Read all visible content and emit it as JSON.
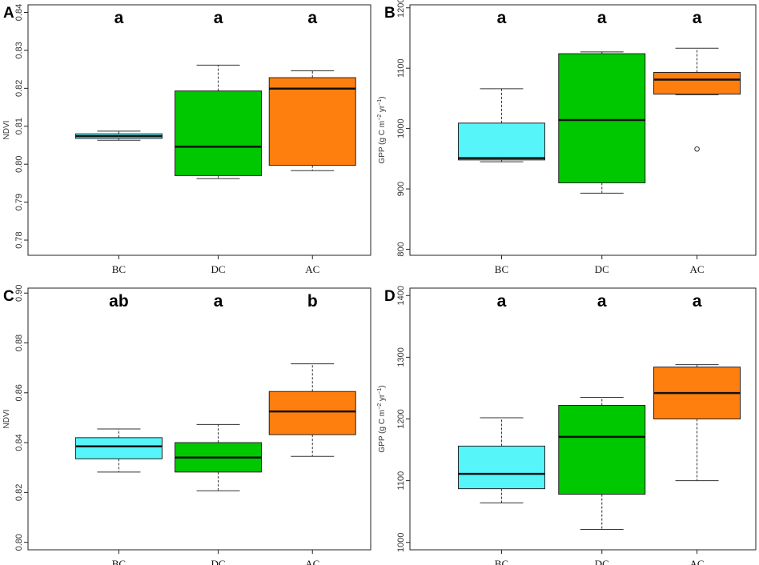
{
  "figure": {
    "groups": [
      "BC",
      "DC",
      "AC"
    ],
    "colors": {
      "BC": "#55F5FA",
      "DC": "#00C800",
      "AC": "#FF7F0E"
    }
  },
  "chart_data": [
    {
      "panel": "A",
      "type": "box",
      "categories": [
        "BC",
        "DC",
        "AC"
      ],
      "ylabel": "NDVI",
      "ylim": [
        0.776,
        0.842
      ],
      "yticks": [
        0.78,
        0.79,
        0.8,
        0.81,
        0.82,
        0.83,
        0.84
      ],
      "yticklabels": [
        "0.78",
        "0.79",
        "0.80",
        "0.81",
        "0.82",
        "0.83",
        "0.84"
      ],
      "significance": [
        "a",
        "a",
        "a"
      ],
      "boxes": [
        {
          "min": 0.8063,
          "q1": 0.8068,
          "median": 0.8074,
          "q3": 0.808,
          "max": 0.8087
        },
        {
          "min": 0.7962,
          "q1": 0.797,
          "median": 0.8046,
          "q3": 0.8193,
          "max": 0.8261
        },
        {
          "min": 0.7983,
          "q1": 0.7997,
          "median": 0.8199,
          "q3": 0.8228,
          "max": 0.8246
        }
      ],
      "outliers": [
        [],
        [],
        []
      ]
    },
    {
      "panel": "B",
      "type": "box",
      "categories": [
        "BC",
        "DC",
        "AC"
      ],
      "ylabel": "GPP (g C m",
      "ylabel_parts": [
        "GPP (g C m",
        "−2",
        " yr",
        "−1",
        ")"
      ],
      "ylim": [
        790,
        1205
      ],
      "yticks": [
        800,
        900,
        1000,
        1100,
        1200
      ],
      "yticklabels": [
        "800",
        "900",
        "1000",
        "1100",
        "1200"
      ],
      "significance": [
        "a",
        "a",
        "a"
      ],
      "boxes": [
        {
          "min": 945,
          "q1": 948,
          "median": 951,
          "q3": 1009,
          "max": 1066
        },
        {
          "min": 893,
          "q1": 910,
          "median": 1014,
          "q3": 1124,
          "max": 1127
        },
        {
          "min": 1056,
          "q1": 1057,
          "median": 1081,
          "q3": 1093,
          "max": 1133
        }
      ],
      "outliers": [
        [],
        [],
        [
          966
        ]
      ]
    },
    {
      "panel": "C",
      "type": "box",
      "categories": [
        "BC",
        "DC",
        "AC"
      ],
      "ylabel": "NDVI",
      "ylim": [
        0.797,
        0.902
      ],
      "yticks": [
        0.8,
        0.82,
        0.84,
        0.86,
        0.88,
        0.9
      ],
      "yticklabels": [
        "0.80",
        "0.82",
        "0.84",
        "0.86",
        "0.88",
        "0.90"
      ],
      "significance": [
        "ab",
        "a",
        "b"
      ],
      "boxes": [
        {
          "min": 0.8282,
          "q1": 0.8335,
          "median": 0.8385,
          "q3": 0.842,
          "max": 0.8455
        },
        {
          "min": 0.8207,
          "q1": 0.8282,
          "median": 0.834,
          "q3": 0.84,
          "max": 0.8473
        },
        {
          "min": 0.8345,
          "q1": 0.8432,
          "median": 0.8525,
          "q3": 0.8605,
          "max": 0.8716
        }
      ],
      "outliers": [
        [],
        [],
        []
      ]
    },
    {
      "panel": "D",
      "type": "box",
      "categories": [
        "BC",
        "DC",
        "AC"
      ],
      "ylabel": "GPP (g C m",
      "ylabel_parts": [
        "GPP (g C m",
        "−2",
        " yr",
        "−1",
        ")"
      ],
      "ylim": [
        988,
        1412
      ],
      "yticks": [
        1000,
        1100,
        1200,
        1300,
        1400
      ],
      "yticklabels": [
        "1000",
        "1100",
        "1200",
        "1300",
        "1400"
      ],
      "significance": [
        "a",
        "a",
        "a"
      ],
      "boxes": [
        {
          "min": 1064,
          "q1": 1087,
          "median": 1111,
          "q3": 1156,
          "max": 1202
        },
        {
          "min": 1021,
          "q1": 1078,
          "median": 1171,
          "q3": 1222,
          "max": 1235
        },
        {
          "min": 1100,
          "q1": 1200,
          "median": 1242,
          "q3": 1284,
          "max": 1288
        }
      ],
      "outliers": [
        [],
        [],
        []
      ]
    }
  ]
}
